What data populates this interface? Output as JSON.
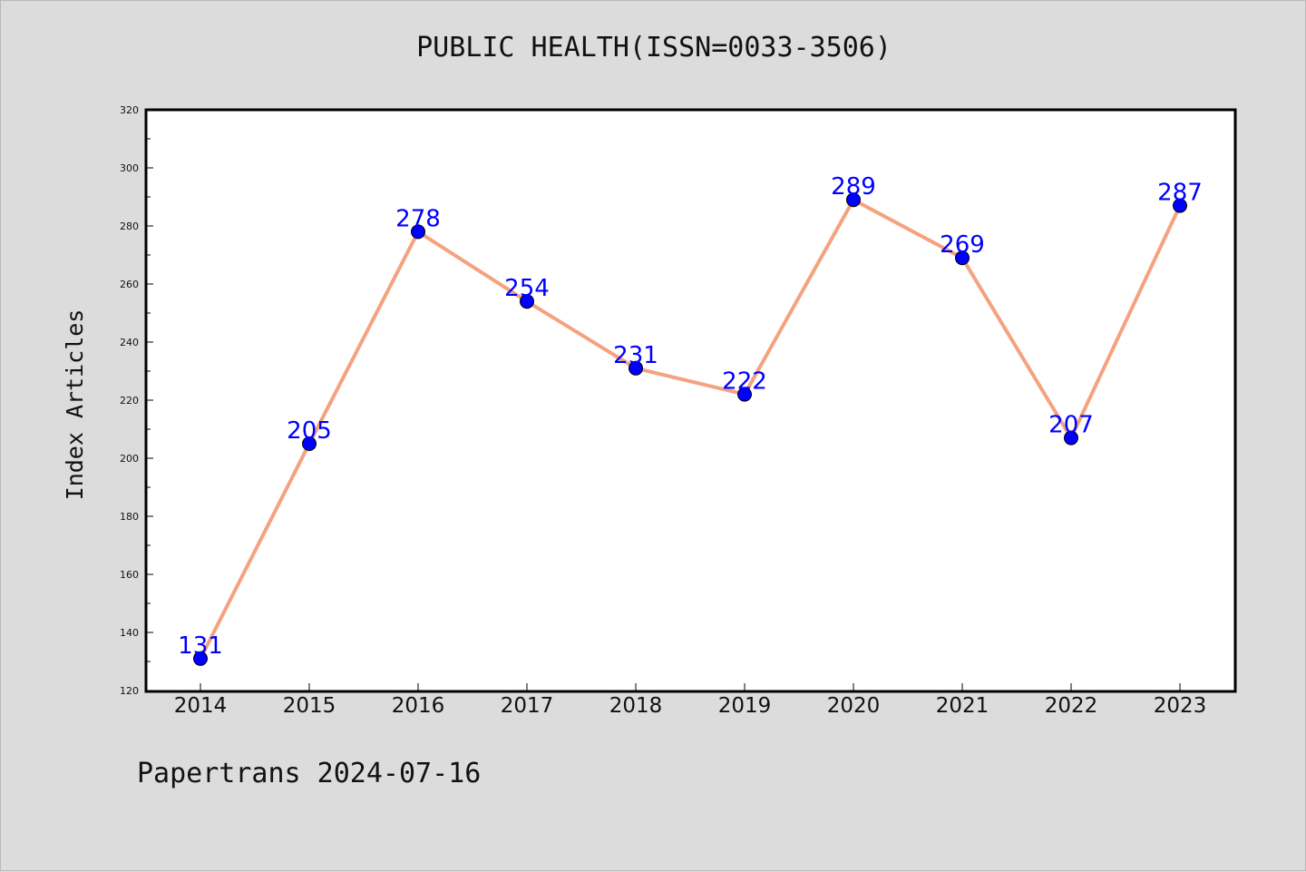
{
  "title": "PUBLIC HEALTH(ISSN=0033-3506)",
  "footer": "Papertrans 2024-07-16",
  "chart_data": {
    "type": "line",
    "title": "PUBLIC HEALTH(ISSN=0033-3506)",
    "xlabel": "",
    "ylabel": "Index Articles",
    "categories": [
      "2014",
      "2015",
      "2016",
      "2017",
      "2018",
      "2019",
      "2020",
      "2021",
      "2022",
      "2023"
    ],
    "values": [
      131,
      205,
      278,
      254,
      231,
      222,
      289,
      269,
      207,
      287
    ],
    "ylim": [
      120,
      320
    ],
    "yticks": [
      120,
      140,
      160,
      180,
      200,
      220,
      240,
      260,
      280,
      300,
      320
    ],
    "grid": false,
    "legend": "none",
    "colors": {
      "line": "#f4a27f",
      "marker": "#0000ff",
      "label": "#0000ff",
      "plot_background": "#ffffff"
    }
  }
}
